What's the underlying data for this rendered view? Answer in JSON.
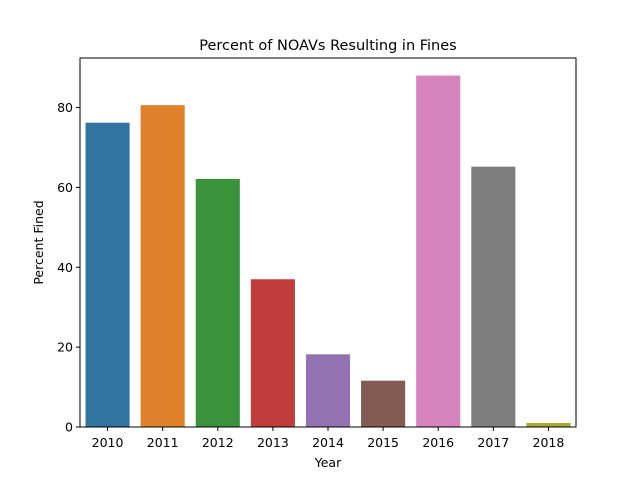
{
  "chart_data": {
    "type": "bar",
    "title": "Percent of NOAVs Resulting in Fines",
    "xlabel": "Year",
    "ylabel": "Percent Fined",
    "categories": [
      "2010",
      "2011",
      "2012",
      "2013",
      "2014",
      "2015",
      "2016",
      "2017",
      "2018"
    ],
    "values": [
      76.2,
      80.6,
      62.1,
      37.0,
      18.2,
      11.6,
      88.0,
      65.2,
      1.0
    ],
    "colors": [
      "#3274a1",
      "#e1812c",
      "#3a923a",
      "#c03d3e",
      "#9372b2",
      "#845b53",
      "#d684bd",
      "#7f7f7f",
      "#a9aa35"
    ],
    "ylim": [
      0,
      92.4
    ],
    "yticks": [
      0,
      20,
      40,
      60,
      80
    ],
    "grid": false,
    "legend": "none"
  }
}
